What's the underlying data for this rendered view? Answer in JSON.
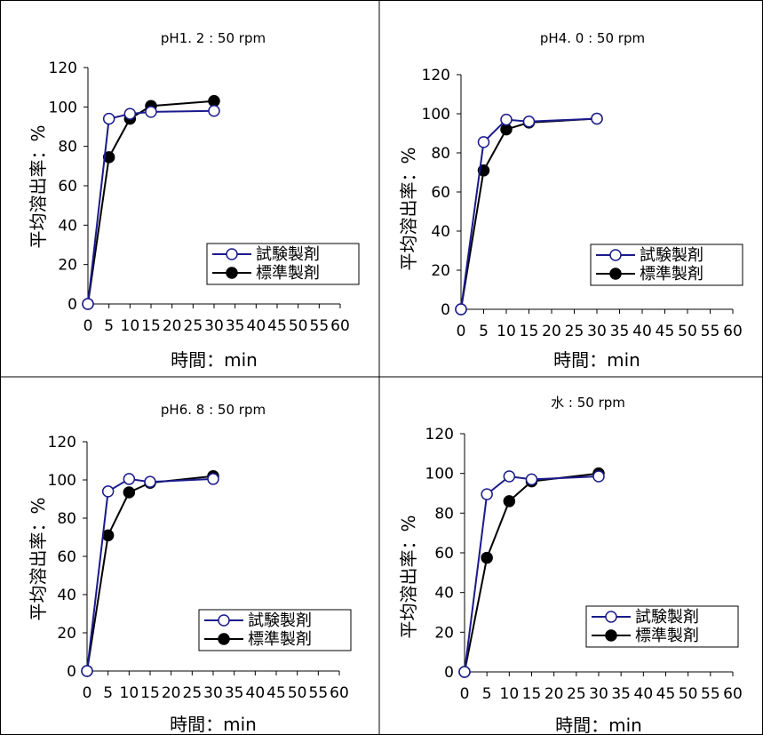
{
  "chart_data": [
    {
      "type": "line",
      "title": "pH1. 2 : 50 rpm",
      "xlabel": "時間：min",
      "ylabel": "平均溶出率：%",
      "xlim": [
        0,
        60
      ],
      "ylim": [
        0,
        120
      ],
      "x_ticks": [
        0,
        5,
        10,
        15,
        20,
        25,
        30,
        35,
        40,
        45,
        50,
        55,
        60
      ],
      "x_tick_labels": [
        "0",
        "5",
        "10",
        "15",
        "20",
        "25",
        "30",
        "35",
        "40",
        "45",
        "50",
        "55",
        "60"
      ],
      "y_ticks": [
        0,
        20,
        40,
        60,
        80,
        100,
        120
      ],
      "legend_position": "bottom-right",
      "series": [
        {
          "name": "試験製剤",
          "color": "#1a1a8c",
          "marker": "open-circle",
          "x": [
            0,
            5,
            10,
            15,
            30
          ],
          "y": [
            0,
            94,
            96.5,
            97.5,
            98
          ]
        },
        {
          "name": "標準製剤",
          "color": "#000000",
          "marker": "filled-circle",
          "x": [
            0,
            5,
            10,
            15,
            30
          ],
          "y": [
            0,
            74.5,
            94,
            100.5,
            103
          ]
        }
      ]
    },
    {
      "type": "line",
      "title": "pH4. 0 : 50 rpm",
      "xlabel": "時間：min",
      "ylabel": "平均溶出率：%",
      "xlim": [
        0,
        60
      ],
      "ylim": [
        0,
        120
      ],
      "x_ticks": [
        0,
        5,
        10,
        15,
        20,
        25,
        30,
        35,
        40,
        45,
        50,
        55,
        60
      ],
      "x_tick_labels": [
        "0",
        "5",
        "10",
        "15",
        "20",
        "25",
        "30",
        "35",
        "40",
        "45",
        "50",
        "55",
        "60"
      ],
      "y_ticks": [
        0,
        20,
        40,
        60,
        80,
        100,
        120
      ],
      "legend_position": "bottom-right",
      "series": [
        {
          "name": "試験製剤",
          "color": "#1a1a8c",
          "marker": "open-circle",
          "x": [
            0,
            5,
            10,
            15,
            30
          ],
          "y": [
            0,
            85.5,
            97,
            96,
            97.5
          ]
        },
        {
          "name": "標準製剤",
          "color": "#000000",
          "marker": "filled-circle",
          "x": [
            0,
            5,
            10,
            15,
            30
          ],
          "y": [
            0,
            71,
            92,
            95.5,
            97.5
          ]
        }
      ]
    },
    {
      "type": "line",
      "title": "pH6. 8 : 50 rpm",
      "xlabel": "時間：min",
      "ylabel": "平均溶出率：%",
      "xlim": [
        0,
        60
      ],
      "ylim": [
        0,
        120
      ],
      "x_ticks": [
        0,
        5,
        10,
        15,
        20,
        25,
        30,
        35,
        40,
        45,
        50,
        55,
        60
      ],
      "x_tick_labels": [
        "0",
        "5",
        "10",
        "15",
        "20",
        "25",
        "30",
        "35",
        "40",
        "45",
        "50",
        "55",
        "60"
      ],
      "y_ticks": [
        0,
        20,
        40,
        60,
        80,
        100,
        120
      ],
      "legend_position": "bottom-right",
      "series": [
        {
          "name": "試験製剤",
          "color": "#1a1a8c",
          "marker": "open-circle",
          "x": [
            0,
            5,
            10,
            15,
            30
          ],
          "y": [
            0,
            94,
            100.5,
            99,
            100.5
          ]
        },
        {
          "name": "標準製剤",
          "color": "#000000",
          "marker": "filled-circle",
          "x": [
            0,
            5,
            10,
            15,
            30
          ],
          "y": [
            0,
            71,
            93.5,
            98.5,
            102
          ]
        }
      ]
    },
    {
      "type": "line",
      "title": "水 : 50 rpm",
      "xlabel": "時間：min",
      "ylabel": "平均溶出率：%",
      "xlim": [
        0,
        60
      ],
      "ylim": [
        0,
        120
      ],
      "x_ticks": [
        0,
        5,
        10,
        15,
        20,
        25,
        30,
        35,
        40,
        45,
        50,
        55,
        60
      ],
      "x_tick_labels": [
        "0",
        "5",
        "10",
        "15",
        "20",
        "25",
        "30",
        "35",
        "40",
        "45",
        "50",
        "55",
        "60"
      ],
      "y_ticks": [
        0,
        20,
        40,
        60,
        80,
        100,
        120
      ],
      "legend_position": "bottom-right",
      "series": [
        {
          "name": "試験製剤",
          "color": "#1a1a8c",
          "marker": "open-circle",
          "x": [
            0,
            5,
            10,
            15,
            30
          ],
          "y": [
            0,
            89.5,
            98.5,
            97,
            98.5
          ]
        },
        {
          "name": "標準製剤",
          "color": "#000000",
          "marker": "filled-circle",
          "x": [
            0,
            5,
            10,
            15,
            30
          ],
          "y": [
            0,
            57.5,
            86,
            96,
            100
          ]
        }
      ]
    }
  ]
}
